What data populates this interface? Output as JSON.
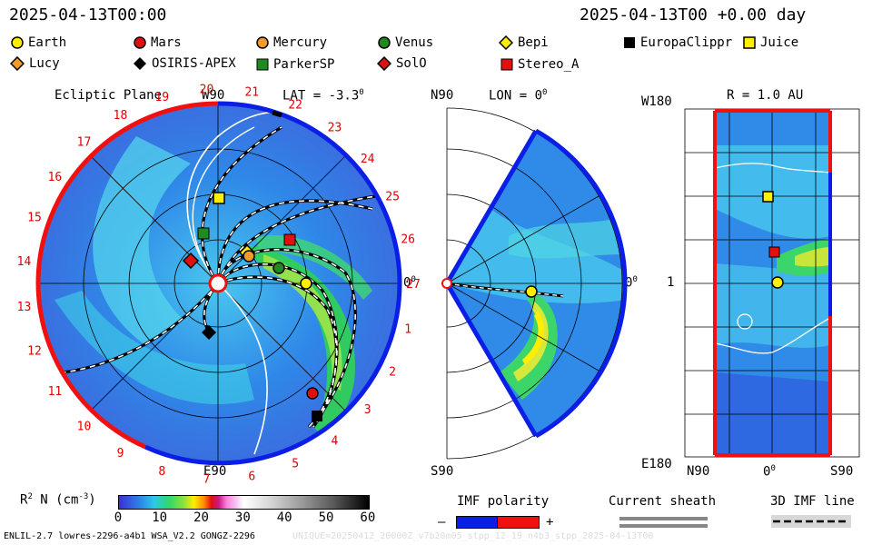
{
  "header": {
    "left_time": "2025-04-13T00:00",
    "right_time": "2025-04-13T00 +0.00 day"
  },
  "legend": {
    "earth": {
      "label": "Earth",
      "color": "#ffee00"
    },
    "mars": {
      "label": "Mars",
      "color": "#e01010"
    },
    "mercury": {
      "label": "Mercury",
      "color": "#f29a2e"
    },
    "venus": {
      "label": "Venus",
      "color": "#1f8a1f"
    },
    "bepi": {
      "label": "Bepi",
      "color": "#ffee00"
    },
    "europaclipper": {
      "label": "EuropaClippr",
      "color": "#000000"
    },
    "juice": {
      "label": "Juice",
      "color": "#ffee00"
    },
    "lucy": {
      "label": "Lucy",
      "color": "#f29a2e"
    },
    "osiris": {
      "label": "OSIRIS-APEX",
      "color": "#000000"
    },
    "parkersp": {
      "label": "ParkerSP",
      "color": "#1f8a1f"
    },
    "solo": {
      "label": "SolO",
      "color": "#e01010"
    },
    "stereo": {
      "label": "Stereo_A",
      "color": "#e01010"
    }
  },
  "ecliptic": {
    "title": "Ecliptic Plane",
    "lat": "LAT = -3.3",
    "lat_sup": "0",
    "w90": "W90",
    "e90": "E90",
    "zero": "0",
    "zero_sup": "0",
    "carrington": [
      "1",
      "2",
      "3",
      "4",
      "5",
      "6",
      "7",
      "8",
      "9",
      "10",
      "11",
      "12",
      "13",
      "14",
      "15",
      "16",
      "17",
      "18",
      "19",
      "20",
      "21",
      "22",
      "23",
      "24",
      "25",
      "26",
      "27"
    ]
  },
  "meridional": {
    "n90": "N90",
    "s90": "S90",
    "lon": "LON = 0",
    "lon_sup": "0",
    "zero": "0",
    "zero_sup": "0"
  },
  "radial": {
    "title": "R = 1.0 AU",
    "w180": "W180",
    "e180": "E180",
    "one": "1",
    "n90": "N90",
    "zero": "0",
    "zero_sup": "0",
    "s90": "S90"
  },
  "colorbar": {
    "label_pre": "R",
    "label_sup": "2",
    "label_post": " N (cm",
    "label_sup2": "-3",
    "label_end": ")",
    "ticks": [
      "0",
      "10",
      "20",
      "30",
      "40",
      "50",
      "60"
    ]
  },
  "imf": {
    "title": "IMF polarity",
    "minus": "–",
    "plus": "+",
    "neg_color": "#0a1ee6",
    "pos_color": "#f01010"
  },
  "sheath": {
    "title": "Current sheath"
  },
  "imfline": {
    "title": "3D IMF line"
  },
  "footer": {
    "left": "ENLIL-2.7 lowres-2296-a4b1 WSA_V2.2 GONGZ-2296",
    "right": "UNIQUE=20250412_20000Z_v7b20m05_stpp_12_19_n4b3_stpp_2025-04-13T00"
  }
}
